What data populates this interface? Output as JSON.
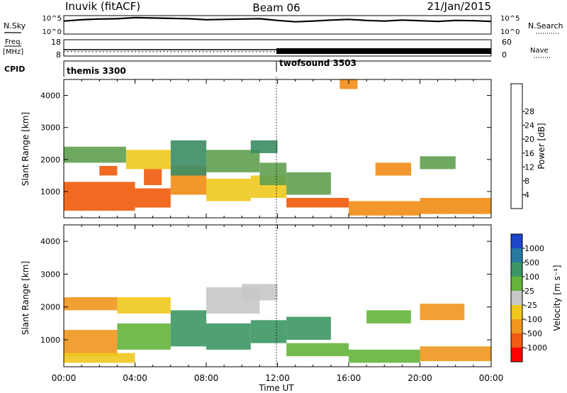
{
  "header": {
    "station": "Inuvik (fitACF)",
    "beam": "Beam 06",
    "date": "21/Jan/2015"
  },
  "noise_panel": {
    "left_label": "N.Sky",
    "right_label": "N.Search",
    "left_ticks": [
      "10^5",
      "10^0"
    ],
    "right_ticks": [
      "10^5",
      "10^0"
    ]
  },
  "freq_panel": {
    "left_label": "Freq.",
    "left_unit": "[MHz]",
    "right_label": "Nave",
    "left_ticks": [
      "18",
      "8"
    ],
    "right_ticks": [
      "60",
      "0"
    ]
  },
  "cpid_panel": {
    "label": "CPID",
    "modes": [
      {
        "name": "themis 3300",
        "start_hour": 0
      },
      {
        "name": "twofsound 3503",
        "start_hour": 12
      }
    ]
  },
  "x_axis": {
    "label": "Time UT",
    "ticks": [
      "00:00",
      "04:00",
      "08:00",
      "12:00",
      "16:00",
      "20:00",
      "00:00"
    ]
  },
  "y_axis": {
    "label": "Slant Range [km]",
    "ticks": [
      "1000",
      "2000",
      "3000",
      "4000"
    ]
  },
  "power_scale": {
    "label": "Power [dB]",
    "ticks": [
      "4",
      "8",
      "12",
      "16",
      "20",
      "24",
      "28"
    ],
    "colors": [
      "#0000ff",
      "#1e50b4",
      "#3c8c64",
      "#5fa050",
      "#f0c81e",
      "#f08c14",
      "#f05a0a",
      "#f01e00",
      "#ff0000"
    ]
  },
  "velocity_scale": {
    "label": "Velocity [m s⁻¹]",
    "ticks": [
      "1000",
      "500",
      "100",
      "25",
      "-25",
      "-100",
      "-500",
      "-1000"
    ],
    "colors": [
      "#1e46c8",
      "#2878a0",
      "#3c9664",
      "#64b43c",
      "#c8c8c8",
      "#f0c81e",
      "#f0961e",
      "#f05a14",
      "#ff0000"
    ]
  },
  "chart_data": [
    {
      "type": "line",
      "title": "N.Sky / N.Search",
      "x_unit": "hour UT",
      "xlim": [
        0,
        24
      ],
      "note_scale": "log",
      "series": [
        {
          "name": "N.Sky",
          "x": [
            0,
            1,
            2,
            3,
            4,
            5,
            6,
            7,
            8,
            9,
            10,
            11,
            12,
            13,
            14,
            15,
            16,
            17,
            18,
            19,
            20,
            21,
            22,
            23,
            24
          ],
          "y_log10": [
            3.6,
            4.0,
            4.2,
            4.3,
            4.6,
            4.5,
            4.4,
            4.3,
            4.0,
            4.1,
            4.2,
            4.3,
            3.8,
            3.4,
            3.6,
            3.9,
            4.1,
            3.8,
            3.6,
            3.9,
            3.7,
            3.5,
            3.8,
            3.7,
            3.5
          ]
        }
      ]
    },
    {
      "type": "scatter",
      "title": "Freq.",
      "xlim": [
        0,
        24
      ],
      "ylim": [
        8,
        18
      ],
      "series": [
        {
          "name": "Freq.",
          "x": [
            0,
            24
          ],
          "y": [
            10.5,
            10.5
          ]
        }
      ]
    },
    {
      "type": "heatmap",
      "title": "Power [dB]",
      "xlim": [
        0,
        24
      ],
      "ylim": [
        180,
        4500
      ],
      "cells": [
        [
          0.0,
          4.0,
          400,
          1300,
          27
        ],
        [
          4.0,
          6.0,
          500,
          1100,
          26
        ],
        [
          6.0,
          8.0,
          900,
          1800,
          21
        ],
        [
          8.0,
          10.5,
          700,
          1400,
          18
        ],
        [
          10.5,
          12.5,
          800,
          1500,
          16
        ],
        [
          12.5,
          16.0,
          500,
          800,
          25
        ],
        [
          16.0,
          20.0,
          250,
          700,
          22
        ],
        [
          20.0,
          24.0,
          300,
          800,
          20
        ],
        [
          0.0,
          3.5,
          1900,
          2400,
          15
        ],
        [
          3.5,
          6.0,
          1700,
          2300,
          19
        ],
        [
          6.0,
          8.0,
          1500,
          2600,
          9
        ],
        [
          8.0,
          11.0,
          1600,
          2300,
          13
        ],
        [
          11.0,
          12.5,
          1200,
          1900,
          14
        ],
        [
          12.5,
          15.0,
          900,
          1600,
          12
        ],
        [
          17.5,
          19.5,
          1500,
          1900,
          20
        ],
        [
          20.0,
          22.0,
          1700,
          2100,
          14
        ],
        [
          2.0,
          3.0,
          1500,
          1800,
          26
        ],
        [
          4.5,
          5.5,
          1200,
          1700,
          27
        ],
        [
          10.5,
          12.0,
          2200,
          2600,
          10
        ],
        [
          15.5,
          16.5,
          4200,
          4500,
          20
        ]
      ]
    },
    {
      "type": "heatmap",
      "title": "Velocity [m s⁻¹]",
      "xlim": [
        0,
        24
      ],
      "ylim": [
        180,
        4500
      ],
      "cells": [
        [
          0.0,
          3.0,
          500,
          1300,
          -120
        ],
        [
          3.0,
          6.0,
          700,
          1500,
          60
        ],
        [
          6.0,
          8.0,
          800,
          1900,
          300
        ],
        [
          8.0,
          10.5,
          700,
          1500,
          100
        ],
        [
          10.5,
          12.5,
          900,
          1600,
          200
        ],
        [
          12.5,
          16.0,
          500,
          900,
          80
        ],
        [
          16.0,
          20.0,
          300,
          700,
          50
        ],
        [
          20.0,
          24.0,
          350,
          800,
          -200
        ],
        [
          0.0,
          3.0,
          1900,
          2300,
          -150
        ],
        [
          3.0,
          6.0,
          1800,
          2300,
          -80
        ],
        [
          8.0,
          11.0,
          1800,
          2600,
          0
        ],
        [
          10.0,
          12.0,
          2200,
          2700,
          0
        ],
        [
          12.5,
          15.0,
          1000,
          1700,
          400
        ],
        [
          17.0,
          19.5,
          1500,
          1900,
          60
        ],
        [
          20.0,
          22.5,
          1600,
          2100,
          -300
        ],
        [
          0.0,
          4.0,
          300,
          600,
          -60
        ]
      ]
    }
  ]
}
